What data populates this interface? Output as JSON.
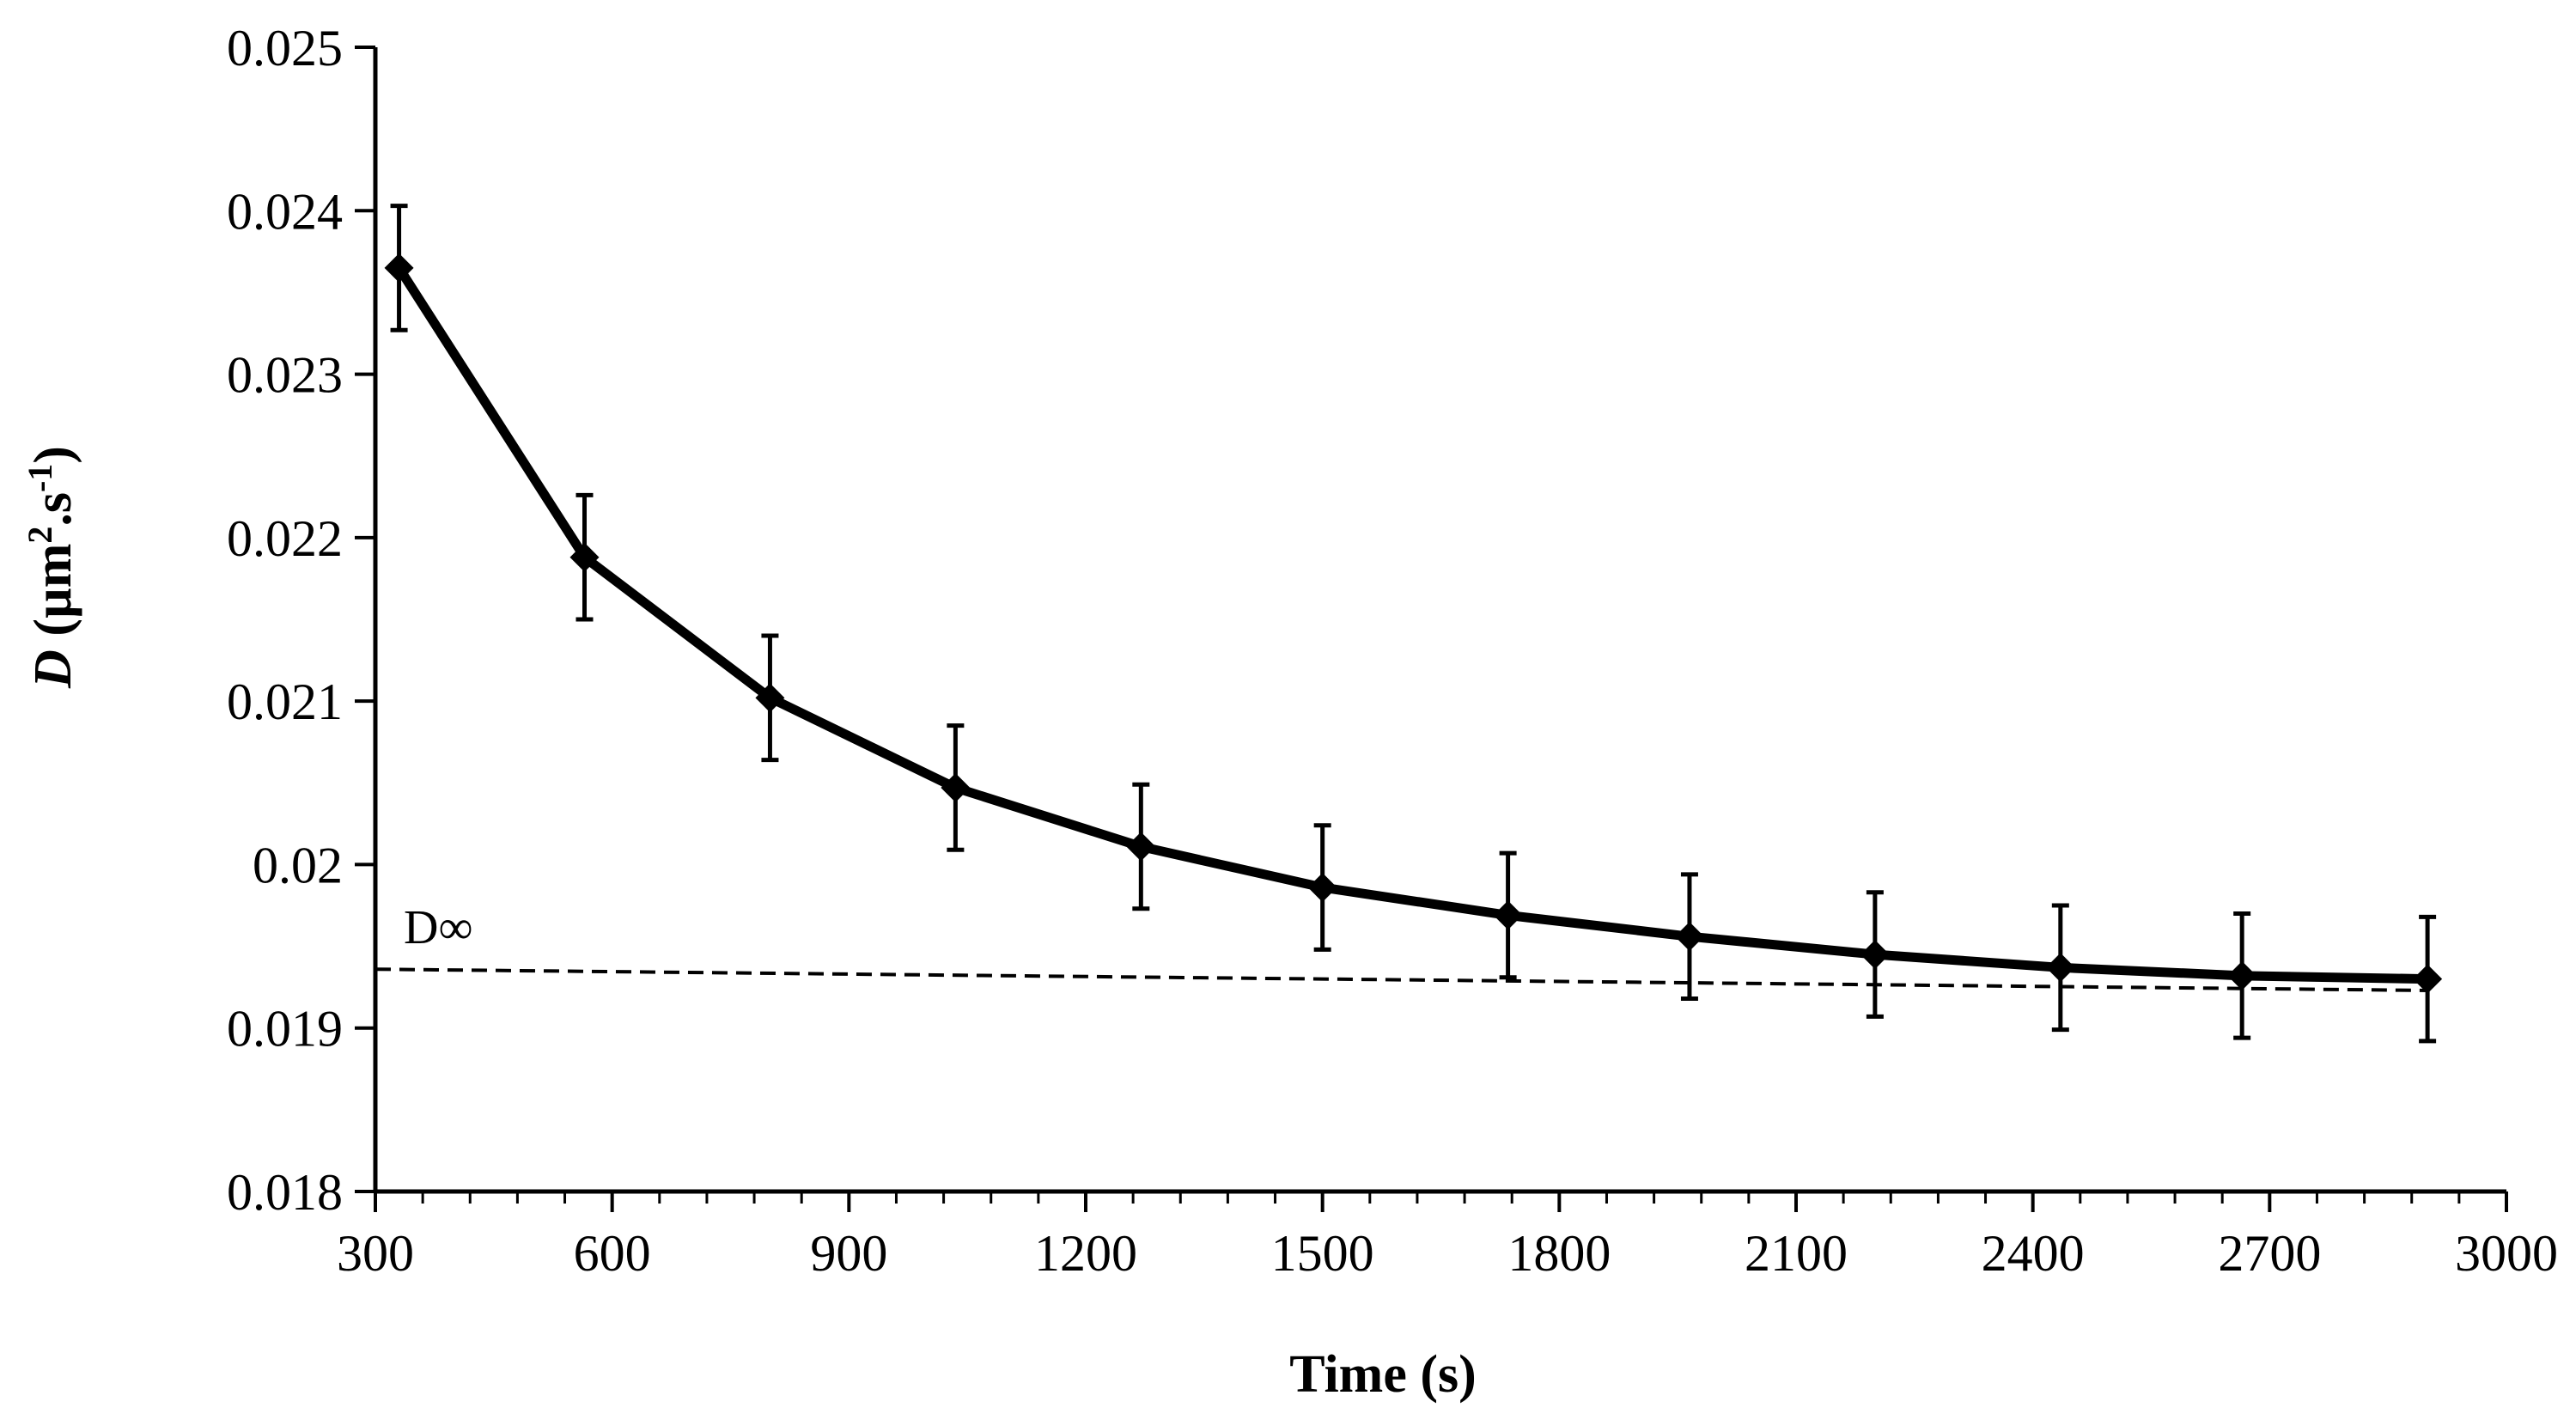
{
  "chart_data": {
    "type": "line",
    "title": "",
    "xlabel": "Time (s)",
    "ylabel": {
      "symbol": "D",
      "unit_open": " (µm",
      "sup1": "2",
      "unit_mid": ".s",
      "sup2": "-1",
      "unit_close": ")"
    },
    "xlim": [
      300,
      3000
    ],
    "ylim": [
      0.018,
      0.025
    ],
    "x_ticks": [
      300,
      600,
      900,
      1200,
      1500,
      1800,
      2100,
      2400,
      2700,
      3000
    ],
    "x_tick_labels": [
      "300",
      "600",
      "900",
      "1200",
      "1500",
      "1800",
      "2100",
      "2400",
      "2700",
      "3000"
    ],
    "y_ticks": [
      0.018,
      0.019,
      0.02,
      0.021,
      0.022,
      0.023,
      0.024,
      0.025
    ],
    "y_tick_labels": [
      "0.018",
      "0.019",
      "0.02",
      "0.021",
      "0.022",
      "0.023",
      "0.024",
      "0.025"
    ],
    "x_minor_step": 60,
    "grid": false,
    "series": [
      {
        "name": "D",
        "marker": "diamond",
        "line_style": "solid",
        "x": [
          330,
          565,
          800,
          1035,
          1270,
          1500,
          1735,
          1965,
          2200,
          2435,
          2665,
          2900
        ],
        "y": [
          0.02365,
          0.02188,
          0.02102,
          0.02047,
          0.02011,
          0.01986,
          0.01969,
          0.01956,
          0.01945,
          0.01937,
          0.01932,
          0.0193
        ],
        "error": [
          0.00038,
          0.00038,
          0.00038,
          0.00038,
          0.00038,
          0.00038,
          0.00038,
          0.00038,
          0.00038,
          0.00038,
          0.00038,
          0.00038
        ]
      }
    ],
    "reference_line": {
      "label": "D∞",
      "line_style": "dashed",
      "x": [
        300,
        2900
      ],
      "y": [
        0.01936,
        0.01923
      ]
    },
    "colors": {
      "line": "#000000",
      "axis": "#000000"
    }
  }
}
